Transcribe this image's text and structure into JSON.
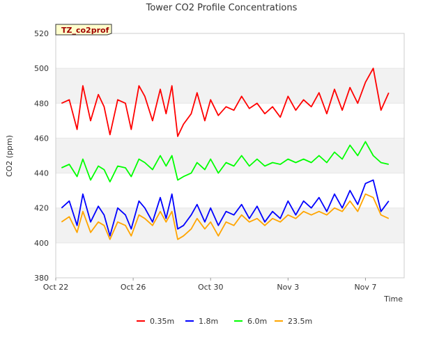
{
  "chart_data": {
    "type": "line",
    "title": "Tower CO2 Profile Concentrations",
    "badge": "TZ_co2prof",
    "xlabel": "Time",
    "ylabel": "CO2 (ppm)",
    "ylim": [
      380,
      520
    ],
    "xlim": [
      0,
      18.0
    ],
    "yticks": [
      380,
      400,
      420,
      440,
      460,
      480,
      500,
      520
    ],
    "xticks": [
      {
        "value": 0,
        "label": "Oct 22"
      },
      {
        "value": 4,
        "label": "Oct 26"
      },
      {
        "value": 8,
        "label": "Oct 30"
      },
      {
        "value": 12,
        "label": "Nov 3"
      },
      {
        "value": 16,
        "label": "Nov 7"
      }
    ],
    "x_unit": "days since Oct 22",
    "bands": [
      [
        400,
        420
      ],
      [
        440,
        460
      ],
      [
        480,
        500
      ]
    ],
    "series": [
      {
        "name": "0.35m",
        "color": "#ff0000",
        "x": [
          0.3,
          0.7,
          1.1,
          1.4,
          1.8,
          2.2,
          2.5,
          2.8,
          3.2,
          3.6,
          3.9,
          4.3,
          4.6,
          5.0,
          5.4,
          5.7,
          6.0,
          6.3,
          6.6,
          7.0,
          7.3,
          7.7,
          8.0,
          8.4,
          8.8,
          9.2,
          9.6,
          10.0,
          10.4,
          10.8,
          11.2,
          11.6,
          12.0,
          12.4,
          12.8,
          13.2,
          13.6,
          14.0,
          14.4,
          14.8,
          15.2,
          15.6,
          16.0,
          16.4,
          16.8,
          17.2
        ],
        "values": [
          480,
          482,
          465,
          490,
          470,
          485,
          478,
          462,
          482,
          480,
          465,
          490,
          484,
          470,
          488,
          474,
          490,
          461,
          468,
          474,
          486,
          470,
          482,
          473,
          478,
          476,
          484,
          477,
          480,
          474,
          478,
          472,
          484,
          476,
          482,
          478,
          486,
          474,
          488,
          476,
          489,
          480,
          492,
          500,
          476,
          486
        ]
      },
      {
        "name": "1.8m",
        "color": "#0000ff",
        "x": [
          0.3,
          0.7,
          1.1,
          1.4,
          1.8,
          2.2,
          2.5,
          2.8,
          3.2,
          3.6,
          3.9,
          4.3,
          4.6,
          5.0,
          5.4,
          5.7,
          6.0,
          6.3,
          6.6,
          7.0,
          7.3,
          7.7,
          8.0,
          8.4,
          8.8,
          9.2,
          9.6,
          10.0,
          10.4,
          10.8,
          11.2,
          11.6,
          12.0,
          12.4,
          12.8,
          13.2,
          13.6,
          14.0,
          14.4,
          14.8,
          15.2,
          15.6,
          16.0,
          16.4,
          16.8,
          17.2
        ],
        "values": [
          420,
          424,
          410,
          428,
          412,
          421,
          416,
          404,
          420,
          416,
          408,
          424,
          420,
          412,
          426,
          414,
          428,
          408,
          410,
          416,
          422,
          412,
          420,
          410,
          418,
          416,
          422,
          414,
          421,
          412,
          418,
          414,
          424,
          416,
          424,
          420,
          426,
          418,
          428,
          420,
          430,
          422,
          434,
          436,
          418,
          424
        ]
      },
      {
        "name": "6.0m",
        "color": "#00ff00",
        "x": [
          0.3,
          0.7,
          1.1,
          1.4,
          1.8,
          2.2,
          2.5,
          2.8,
          3.2,
          3.6,
          3.9,
          4.3,
          4.6,
          5.0,
          5.4,
          5.7,
          6.0,
          6.3,
          6.6,
          7.0,
          7.3,
          7.7,
          8.0,
          8.4,
          8.8,
          9.2,
          9.6,
          10.0,
          10.4,
          10.8,
          11.2,
          11.6,
          12.0,
          12.4,
          12.8,
          13.2,
          13.6,
          14.0,
          14.4,
          14.8,
          15.2,
          15.6,
          16.0,
          16.4,
          16.8,
          17.2
        ],
        "values": [
          443,
          445,
          438,
          448,
          436,
          444,
          442,
          435,
          444,
          443,
          438,
          448,
          446,
          442,
          450,
          444,
          450,
          436,
          438,
          440,
          446,
          442,
          448,
          440,
          446,
          444,
          450,
          444,
          448,
          444,
          446,
          445,
          448,
          446,
          448,
          446,
          450,
          446,
          452,
          448,
          456,
          450,
          458,
          450,
          446,
          445
        ]
      },
      {
        "name": "23.5m",
        "color": "#ffa500",
        "x": [
          0.3,
          0.7,
          1.1,
          1.4,
          1.8,
          2.2,
          2.5,
          2.8,
          3.2,
          3.6,
          3.9,
          4.3,
          4.6,
          5.0,
          5.4,
          5.7,
          6.0,
          6.3,
          6.6,
          7.0,
          7.3,
          7.7,
          8.0,
          8.4,
          8.8,
          9.2,
          9.6,
          10.0,
          10.4,
          10.8,
          11.2,
          11.6,
          12.0,
          12.4,
          12.8,
          13.2,
          13.6,
          14.0,
          14.4,
          14.8,
          15.2,
          15.6,
          16.0,
          16.4,
          16.8,
          17.2
        ],
        "values": [
          412,
          415,
          406,
          418,
          406,
          412,
          410,
          402,
          412,
          410,
          404,
          416,
          414,
          410,
          418,
          412,
          418,
          402,
          404,
          408,
          414,
          408,
          412,
          404,
          412,
          410,
          416,
          412,
          414,
          410,
          414,
          412,
          416,
          414,
          418,
          416,
          418,
          416,
          420,
          418,
          424,
          418,
          428,
          426,
          416,
          414
        ]
      }
    ]
  }
}
